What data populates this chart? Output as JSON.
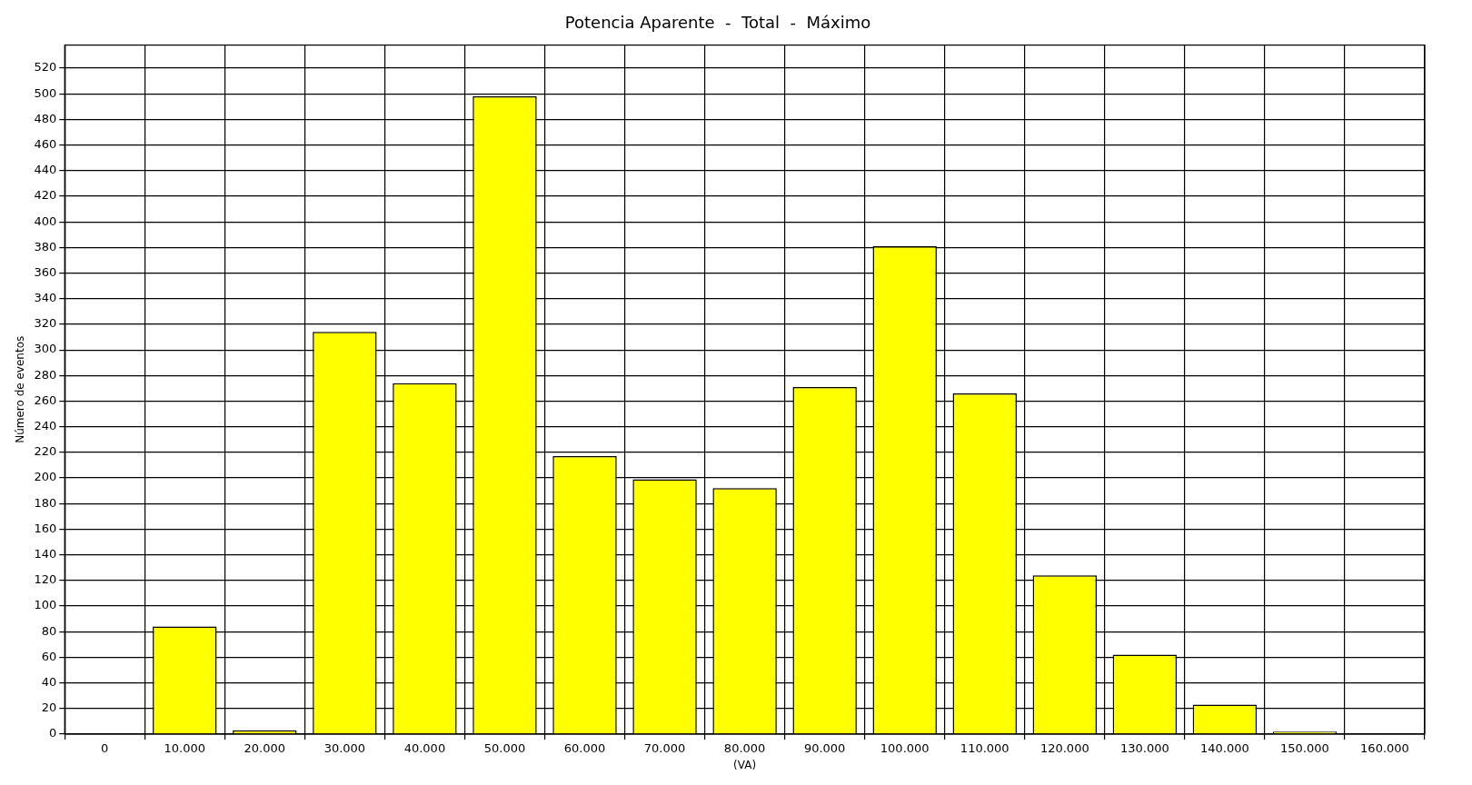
{
  "chart_data": {
    "type": "bar",
    "title": "Potencia Aparente  -  Total  -  Máximo",
    "xlabel": "(VA)",
    "ylabel": "Número de eventos",
    "categories": [
      "0",
      "10.000",
      "20.000",
      "30.000",
      "40.000",
      "50.000",
      "60.000",
      "70.000",
      "80.000",
      "90.000",
      "100.000",
      "110.000",
      "120.000",
      "130.000",
      "140.000",
      "150.000",
      "160.000"
    ],
    "values": [
      0,
      84,
      3,
      314,
      274,
      498,
      217,
      199,
      192,
      271,
      381,
      266,
      124,
      62,
      23,
      2,
      0
    ],
    "color": "#ffff00",
    "ylim": [
      0,
      538
    ],
    "yticks": [
      0,
      20,
      40,
      60,
      80,
      100,
      120,
      140,
      160,
      180,
      200,
      220,
      240,
      260,
      280,
      300,
      320,
      340,
      360,
      380,
      400,
      420,
      440,
      460,
      480,
      500,
      520
    ],
    "grid": true,
    "legend": false
  }
}
